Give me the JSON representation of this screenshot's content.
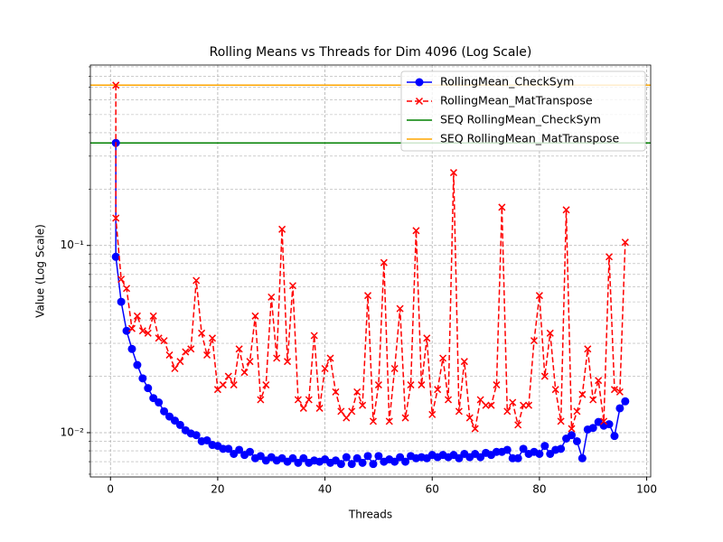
{
  "chart_data": {
    "type": "line",
    "title": "Rolling Means vs Threads for Dim 4096 (Log Scale)",
    "xlabel": "Threads",
    "ylabel": "Value (Log Scale)",
    "x": [
      1,
      1,
      2,
      3,
      4,
      5,
      6,
      7,
      8,
      9,
      10,
      11,
      12,
      13,
      14,
      15,
      16,
      17,
      18,
      19,
      20,
      21,
      22,
      23,
      24,
      25,
      26,
      27,
      28,
      29,
      30,
      31,
      32,
      33,
      34,
      35,
      36,
      37,
      38,
      39,
      40,
      41,
      42,
      43,
      44,
      45,
      46,
      47,
      48,
      49,
      50,
      51,
      52,
      53,
      54,
      55,
      56,
      57,
      58,
      59,
      60,
      61,
      62,
      63,
      64,
      65,
      66,
      67,
      68,
      69,
      70,
      71,
      72,
      73,
      74,
      75,
      76,
      77,
      78,
      79,
      80,
      81,
      82,
      83,
      84,
      85,
      86,
      87,
      88,
      89,
      90,
      91,
      92,
      93,
      94,
      95,
      96
    ],
    "series": [
      {
        "name": "RollingMean_CheckSym",
        "color": "#0000ff",
        "marker": "o",
        "linestyle": "solid",
        "values": [
          0.353,
          0.087,
          0.05,
          0.035,
          0.028,
          0.023,
          0.0195,
          0.0173,
          0.0153,
          0.0145,
          0.013,
          0.0122,
          0.0116,
          0.011,
          0.0103,
          0.0099,
          0.0097,
          0.009,
          0.0091,
          0.0086,
          0.0085,
          0.0082,
          0.0082,
          0.0077,
          0.0081,
          0.0076,
          0.0079,
          0.0073,
          0.0075,
          0.0071,
          0.0074,
          0.0071,
          0.0073,
          0.007,
          0.0073,
          0.0069,
          0.0073,
          0.0069,
          0.0071,
          0.007,
          0.0072,
          0.0069,
          0.0071,
          0.0068,
          0.0074,
          0.0068,
          0.0073,
          0.0069,
          0.0075,
          0.0068,
          0.0075,
          0.007,
          0.0072,
          0.007,
          0.0074,
          0.007,
          0.0075,
          0.0073,
          0.0074,
          0.0073,
          0.0076,
          0.0074,
          0.0076,
          0.0074,
          0.0076,
          0.0073,
          0.0077,
          0.0074,
          0.0077,
          0.0074,
          0.0078,
          0.0076,
          0.0079,
          0.0079,
          0.0081,
          0.0073,
          0.0073,
          0.0082,
          0.0077,
          0.0079,
          0.0077,
          0.0085,
          0.0077,
          0.0081,
          0.0082,
          0.0093,
          0.0097,
          0.009,
          0.0073,
          0.0104,
          0.0106,
          0.0114,
          0.0109,
          0.0111,
          0.0096,
          0.0135,
          0.0147
        ]
      },
      {
        "name": "RollingMean_MatTranspose",
        "color": "#ff0000",
        "marker": "x",
        "linestyle": "dashed",
        "values": [
          0.718,
          0.14,
          0.066,
          0.059,
          0.036,
          0.042,
          0.035,
          0.034,
          0.042,
          0.032,
          0.031,
          0.026,
          0.022,
          0.024,
          0.027,
          0.028,
          0.065,
          0.034,
          0.026,
          0.032,
          0.017,
          0.018,
          0.02,
          0.018,
          0.028,
          0.021,
          0.024,
          0.042,
          0.015,
          0.018,
          0.053,
          0.025,
          0.122,
          0.024,
          0.061,
          0.015,
          0.0135,
          0.015,
          0.033,
          0.0135,
          0.022,
          0.025,
          0.0165,
          0.013,
          0.012,
          0.013,
          0.0165,
          0.014,
          0.054,
          0.0115,
          0.018,
          0.081,
          0.0115,
          0.022,
          0.046,
          0.012,
          0.018,
          0.12,
          0.018,
          0.032,
          0.0125,
          0.017,
          0.025,
          0.015,
          0.245,
          0.013,
          0.024,
          0.012,
          0.0105,
          0.015,
          0.014,
          0.014,
          0.018,
          0.16,
          0.013,
          0.0145,
          0.011,
          0.014,
          0.014,
          0.031,
          0.054,
          0.02,
          0.034,
          0.017,
          0.0115,
          0.155,
          0.0105,
          0.013,
          0.016,
          0.028,
          0.015,
          0.019,
          0.0115,
          0.087,
          0.017,
          0.0165,
          0.104
        ]
      }
    ],
    "hlines": [
      {
        "name": "SEQ RollingMean_CheckSym",
        "color": "#008000",
        "value": 0.353
      },
      {
        "name": "SEQ RollingMean_MatTranspose",
        "color": "#ffa500",
        "value": 0.718
      }
    ],
    "xlim": [
      -3.75,
      100.75
    ],
    "xticks": [
      0,
      20,
      40,
      60,
      80,
      100
    ],
    "ylim": [
      0.0058,
      0.92
    ],
    "log_y": true,
    "yticks": [
      {
        "value": 0.01,
        "label": "10⁻²"
      },
      {
        "value": 0.1,
        "label": "10⁻¹"
      }
    ],
    "yminorticks": [
      0.006,
      0.007,
      0.008,
      0.009,
      0.02,
      0.03,
      0.04,
      0.05,
      0.06,
      0.07,
      0.08,
      0.09,
      0.2,
      0.3,
      0.4,
      0.5,
      0.6,
      0.7,
      0.8,
      0.9
    ],
    "grid": true,
    "legend": "upper right"
  }
}
